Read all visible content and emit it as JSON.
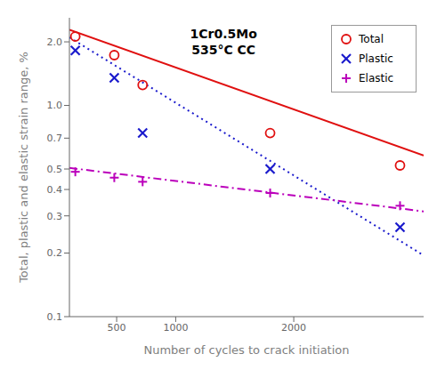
{
  "chart_data": {
    "type": "scatter",
    "annotation": "1Cr0.5Mo\n535°C CC",
    "xlabel": "Number of cycles to crack initiation",
    "ylabel": "Total, plastic and elastic strain range, %",
    "log": "y",
    "legend": "upper right",
    "grid": false,
    "xlim": [
      100,
      3100
    ],
    "xticks": [
      500,
      1000,
      2000
    ],
    "ylim": [
      0.1,
      2.6
    ],
    "yticks": [
      0.1,
      0.2,
      0.3,
      0.4,
      0.5,
      0.7,
      {
        "value": 1,
        "label": "1.0"
      },
      {
        "value": 2,
        "label": "2.0"
      }
    ],
    "series": [
      {
        "name": "Total",
        "color": "#e01010",
        "marker": "circle",
        "x": [
          150,
          480,
          720,
          1800,
          2900
        ],
        "values": [
          2.12,
          1.73,
          1.25,
          0.74,
          0.52
        ],
        "fit": {
          "type": "line",
          "line_style": "solid",
          "x": [
            100,
            3100
          ],
          "values": [
            2.28,
            0.58
          ]
        }
      },
      {
        "name": "Plastic",
        "color": "#1a1acc",
        "marker": "x",
        "x": [
          150,
          480,
          720,
          1800,
          2900
        ],
        "values": [
          1.82,
          1.35,
          0.74,
          0.5,
          0.265
        ],
        "fit": {
          "type": "line",
          "line_style": "dotted",
          "x": [
            100,
            3100
          ],
          "values": [
            2.1,
            0.195
          ]
        }
      },
      {
        "name": "Elastic",
        "color": "#bb00bb",
        "marker": "plus",
        "x": [
          150,
          480,
          720,
          1800,
          2900
        ],
        "values": [
          0.485,
          0.455,
          0.435,
          0.385,
          0.335
        ],
        "fit": {
          "type": "line",
          "line_style": "dashdot",
          "x": [
            100,
            3100
          ],
          "values": [
            0.506,
            0.315
          ]
        }
      }
    ]
  }
}
